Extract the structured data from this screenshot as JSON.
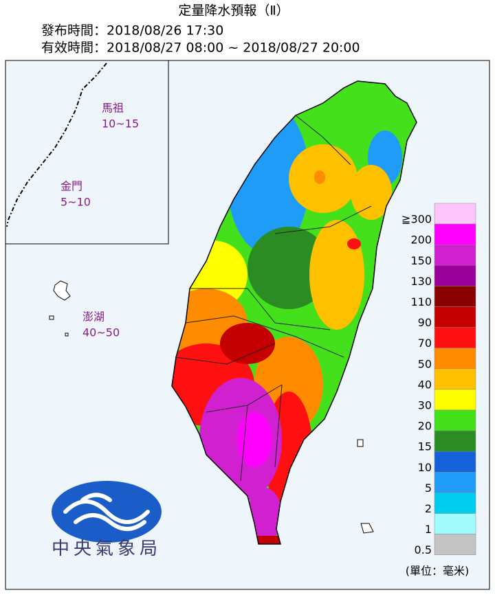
{
  "header": {
    "title": "定量降水預報（Ⅱ）",
    "issued": "發布時間：2018/08/26 17:30",
    "valid": "有效時間：2018/08/27 08:00 ~ 2018/08/27 20:00"
  },
  "islands": [
    {
      "name": "馬祖",
      "range": "10~15"
    },
    {
      "name": "金門",
      "range": "5~10"
    },
    {
      "name": "澎湖",
      "range": "40~50"
    }
  ],
  "legend": {
    "items": [
      {
        "label": "≧300",
        "color": "#fcc6fc"
      },
      {
        "label": "200",
        "color": "#ff00ff"
      },
      {
        "label": "150",
        "color": "#d020d0"
      },
      {
        "label": "130",
        "color": "#9a009a"
      },
      {
        "label": "110",
        "color": "#8a0000"
      },
      {
        "label": "90",
        "color": "#c40000"
      },
      {
        "label": "70",
        "color": "#ff1010"
      },
      {
        "label": "50",
        "color": "#ff8c00"
      },
      {
        "label": "40",
        "color": "#ffc000"
      },
      {
        "label": "30",
        "color": "#ffff00"
      },
      {
        "label": "20",
        "color": "#44e01c"
      },
      {
        "label": "15",
        "color": "#2c8c24"
      },
      {
        "label": "10",
        "color": "#1462d8"
      },
      {
        "label": "5",
        "color": "#1e9cf8"
      },
      {
        "label": "2",
        "color": "#00ccee"
      },
      {
        "label": "1",
        "color": "#a0fcfc"
      },
      {
        "label": "0.5",
        "color": "#c4c4c4"
      }
    ],
    "unit": "(單位：毫米)"
  },
  "logo": {
    "text": "中央氣象局"
  }
}
